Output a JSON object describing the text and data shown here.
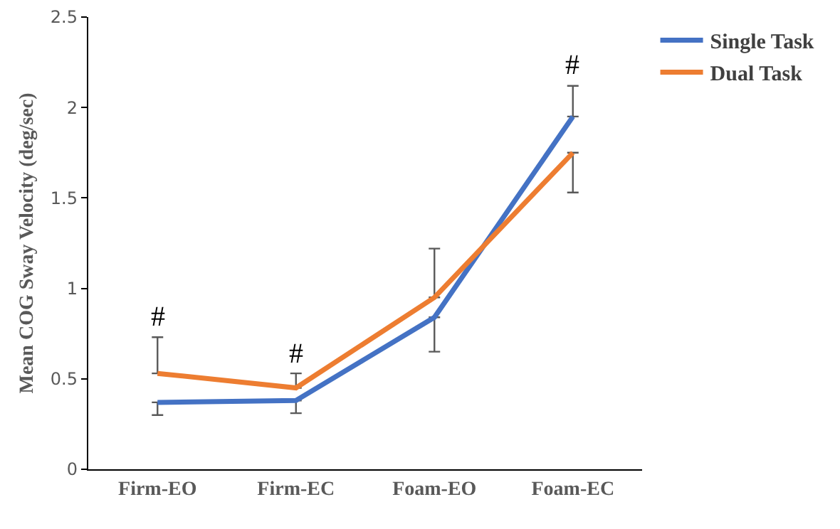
{
  "chart_data": {
    "type": "line",
    "ylabel": "Mean COG Sway Velocity (deg/sec)",
    "categories": [
      "Firm-EO",
      "Firm-EC",
      "Foam-EO",
      "Foam-EC"
    ],
    "series": [
      {
        "name": "Single Task",
        "color": "#4472c4",
        "values": [
          0.37,
          0.38,
          0.84,
          1.95
        ],
        "errors": [
          [
            0.3,
            0.37
          ],
          [
            0.31,
            0.38
          ],
          [
            0.65,
            0.84
          ],
          [
            1.95,
            2.12
          ]
        ]
      },
      {
        "name": "Dual Task",
        "color": "#ed7d31",
        "values": [
          0.53,
          0.45,
          0.95,
          1.75
        ],
        "errors": [
          [
            0.53,
            0.73
          ],
          [
            0.45,
            0.53
          ],
          [
            0.95,
            1.22
          ],
          [
            1.53,
            1.75
          ]
        ]
      }
    ],
    "annotations": [
      {
        "text": "#",
        "x": "Firm-EO",
        "y": 0.73
      },
      {
        "text": "#",
        "x": "Firm-EC",
        "y": 0.53
      },
      {
        "text": "#",
        "x": "Foam-EC",
        "y": 2.12
      }
    ],
    "ylim": [
      0,
      2.5
    ],
    "yticks": [
      0,
      0.5,
      1,
      1.5,
      2,
      2.5
    ],
    "grid": false,
    "legend": "top right",
    "marker": "none",
    "line_style": "solid"
  }
}
